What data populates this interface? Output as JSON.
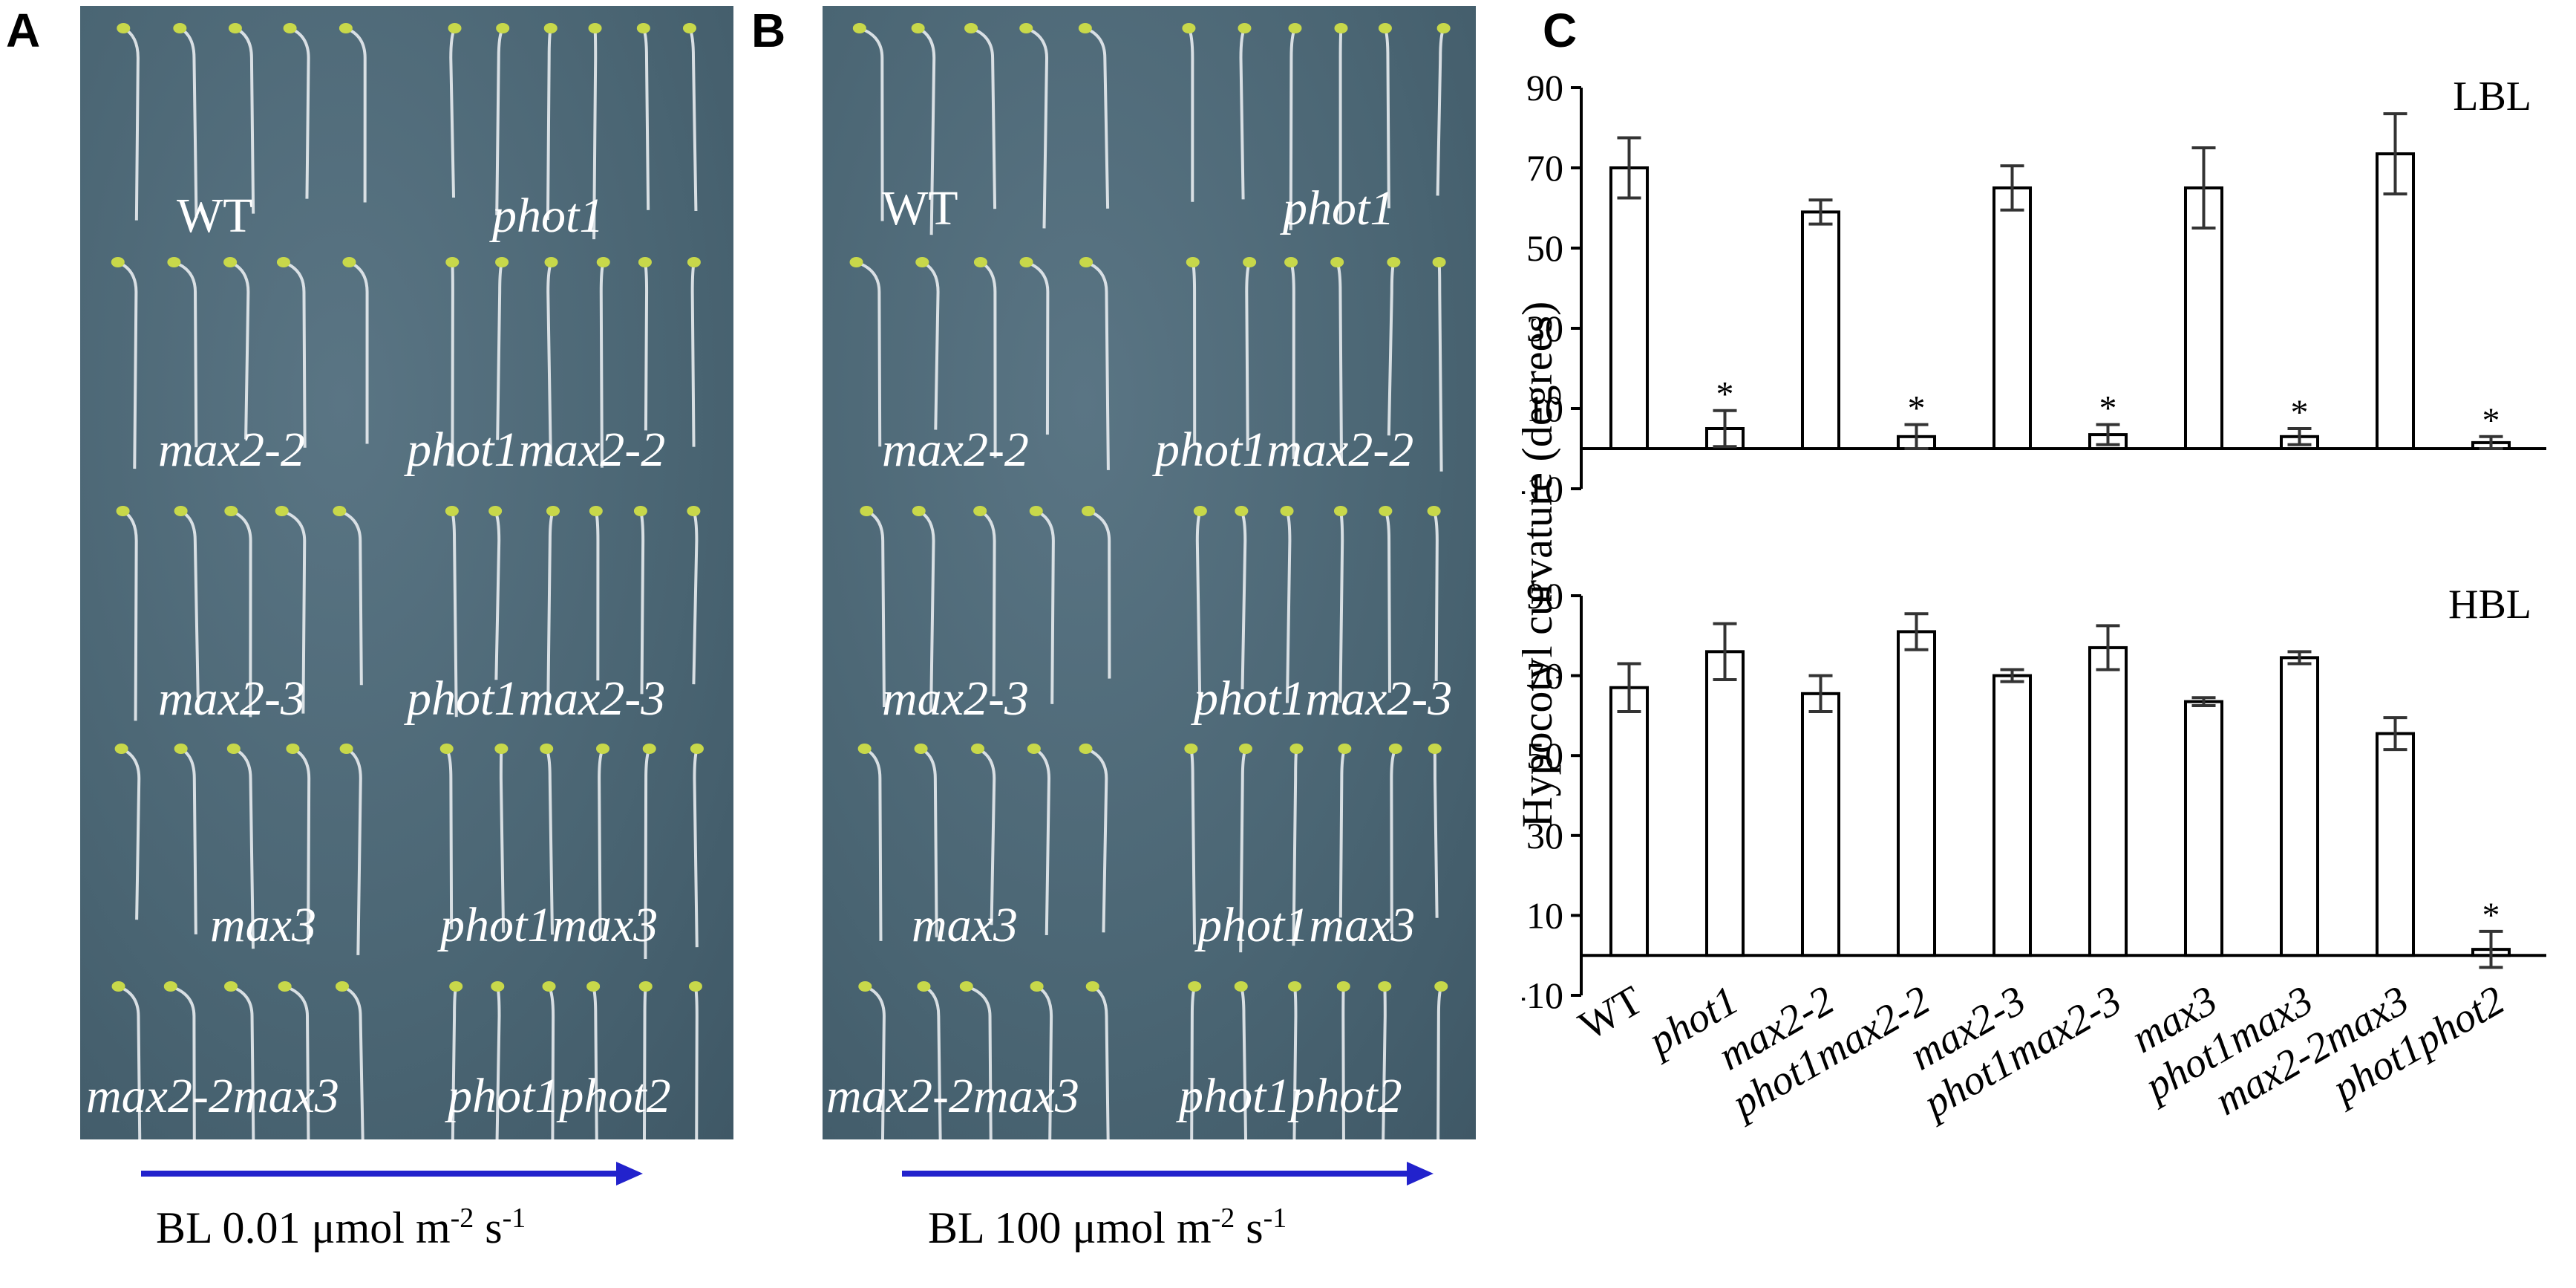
{
  "panels": {
    "a": "A",
    "b": "B",
    "c": "C"
  },
  "photo_a": {
    "labels": [
      "WT",
      "phot1",
      "max2-2",
      "phot1max2-2",
      "max2-3",
      "phot1max2-3",
      "max3",
      "phot1max3",
      "max2-2max3",
      "phot1phot2"
    ],
    "caption": {
      "prefix": "BL 0.01 μmol m",
      "sup1": "-2",
      "mid": " s",
      "sup2": "-1"
    }
  },
  "photo_b": {
    "labels": [
      "WT",
      "phot1",
      "max2-2",
      "phot1max2-2",
      "max2-3",
      "phot1max2-3",
      "max3",
      "phot1max3",
      "max2-2max3",
      "phot1phot2"
    ],
    "caption": {
      "prefix": "BL 100 μmol m",
      "sup1": "-2",
      "mid": " s",
      "sup2": "-1"
    }
  },
  "colors": {
    "photo_bg": "#4d6877",
    "arrow": "#2222cc",
    "seedling": "#e8ecef",
    "cotyledon": "#c8d84a"
  },
  "chart_data": {
    "type": "bar",
    "ylabel": "Hypocotyl curvature (degrees)",
    "categories": [
      "WT",
      "phot1",
      "max2-2",
      "phot1max2-2",
      "max2-3",
      "phot1max2-3",
      "max3",
      "phot1max3",
      "max2-2max3",
      "phot1phot2"
    ],
    "yticks": [
      -10,
      10,
      30,
      50,
      70,
      90
    ],
    "ytick_labels": [
      "-10",
      "10",
      "30",
      "50",
      "70",
      "90"
    ],
    "ylim": [
      -10,
      90
    ],
    "significance_mark": "*",
    "panels": [
      {
        "name": "LBL",
        "values": [
          70,
          5,
          59,
          null,
          65,
          3.5,
          65,
          3,
          73.5,
          1.5
        ],
        "bar_values": [
          70,
          5,
          59,
          3,
          65,
          3.5,
          65,
          3,
          73.5,
          1.5
        ],
        "errors": [
          7.5,
          4.5,
          3,
          3,
          5.5,
          2.5,
          10,
          2,
          10,
          1.5
        ],
        "significant": [
          false,
          true,
          false,
          true,
          false,
          true,
          false,
          true,
          false,
          true
        ],
        "bar_indices": [
          0,
          1,
          2,
          3,
          4,
          5,
          6,
          7,
          8,
          9
        ]
      },
      {
        "name": "HBL",
        "bar_values": [
          67,
          76,
          65.5,
          81,
          70,
          77,
          63.5,
          74.5,
          55.5,
          1.5
        ],
        "errors": [
          6,
          7,
          4.5,
          4.5,
          1.5,
          5.5,
          1,
          1.5,
          4,
          4.5
        ],
        "significant": [
          false,
          false,
          false,
          false,
          false,
          false,
          false,
          false,
          false,
          true
        ]
      }
    ]
  }
}
